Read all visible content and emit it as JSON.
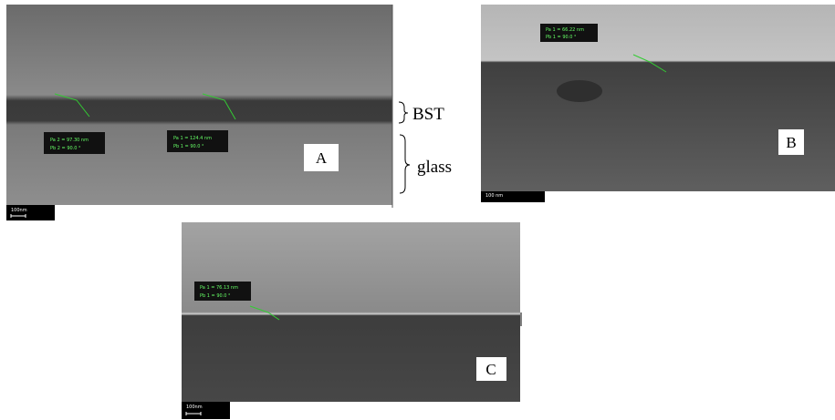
{
  "panels": [
    {
      "label": "A",
      "scale_bar": "100nm",
      "measurements": [
        [
          "Pa 2 = 97.30 nm",
          "Pb 2 = 90.0 °"
        ],
        [
          "Pa 1 = 124.4 nm",
          "Pb 1 = 90.0 °"
        ]
      ]
    },
    {
      "label": "B",
      "scale_bar": "100 nm",
      "measurements": [
        [
          "Pa 1 = 66.22 nm",
          "Pb 1 = 90.0 °"
        ]
      ]
    },
    {
      "label": "C",
      "scale_bar": "100nm",
      "measurements": [
        [
          "Pa 1 = 76.13 nm",
          "Pb 1 = 90.0 °"
        ]
      ]
    }
  ],
  "annotations": {
    "bst": "BST",
    "glass": "glass"
  }
}
